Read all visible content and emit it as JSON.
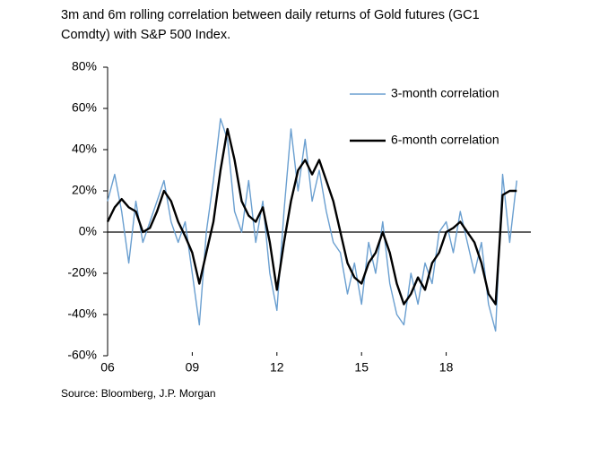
{
  "chart_data": {
    "type": "line",
    "title": "3m and 6m rolling correlation between daily returns of Gold futures (GC1 Comdty) with S&P 500 Index.",
    "source": "Source: Bloomberg, J.P. Morgan",
    "x": [
      6,
      6.25,
      6.5,
      6.75,
      7,
      7.25,
      7.5,
      7.75,
      8,
      8.25,
      8.5,
      8.75,
      9,
      9.25,
      9.5,
      9.75,
      10,
      10.25,
      10.5,
      10.75,
      11,
      11.25,
      11.5,
      11.75,
      12,
      12.25,
      12.5,
      12.75,
      13,
      13.25,
      13.5,
      13.75,
      14,
      14.25,
      14.5,
      14.75,
      15,
      15.25,
      15.5,
      15.75,
      16,
      16.25,
      16.5,
      16.75,
      17,
      17.25,
      17.5,
      17.75,
      18,
      18.25,
      18.5,
      18.75,
      19,
      19.25,
      19.5,
      19.75,
      20,
      20.25,
      20.5
    ],
    "series": [
      {
        "name": "3-month correlation",
        "color": "#6a9fd0",
        "width": 1.4,
        "values": [
          15,
          28,
          10,
          -15,
          15,
          -5,
          5,
          15,
          25,
          5,
          -5,
          5,
          -20,
          -45,
          0,
          25,
          55,
          45,
          10,
          0,
          25,
          -5,
          15,
          -20,
          -38,
          10,
          50,
          20,
          45,
          15,
          30,
          10,
          -5,
          -10,
          -30,
          -15,
          -35,
          -5,
          -20,
          5,
          -25,
          -40,
          -45,
          -20,
          -35,
          -15,
          -25,
          0,
          5,
          -10,
          10,
          -5,
          -20,
          -5,
          -35,
          -48,
          28,
          -5,
          25
        ]
      },
      {
        "name": "6-month correlation",
        "color": "#000000",
        "width": 2.4,
        "values": [
          5,
          12,
          16,
          12,
          10,
          0,
          2,
          10,
          20,
          15,
          5,
          -2,
          -10,
          -25,
          -10,
          5,
          30,
          50,
          35,
          15,
          8,
          5,
          12,
          -5,
          -28,
          -5,
          15,
          30,
          35,
          28,
          35,
          25,
          15,
          0,
          -15,
          -22,
          -25,
          -15,
          -10,
          0,
          -10,
          -25,
          -35,
          -30,
          -22,
          -28,
          -15,
          -10,
          0,
          2,
          5,
          0,
          -5,
          -15,
          -30,
          -35,
          18,
          20,
          20
        ]
      }
    ],
    "xlim": [
      6,
      21
    ],
    "xticks": [
      {
        "value": 6,
        "label": "06"
      },
      {
        "value": 9,
        "label": "09"
      },
      12,
      15,
      18
    ],
    "ylim": [
      -60,
      80
    ],
    "yticks": [
      {
        "value": -60,
        "label": "-60%"
      },
      {
        "value": -40,
        "label": "-40%"
      },
      {
        "value": -20,
        "label": "-20%"
      },
      {
        "value": 0,
        "label": "0%"
      },
      {
        "value": 20,
        "label": "20%"
      },
      {
        "value": 40,
        "label": "40%"
      },
      {
        "value": 60,
        "label": "60%"
      },
      {
        "value": 80,
        "label": "80%"
      }
    ],
    "zero_line": true
  }
}
